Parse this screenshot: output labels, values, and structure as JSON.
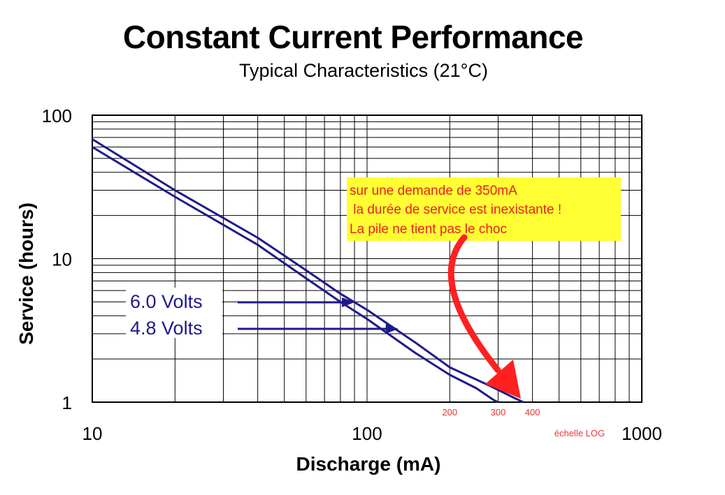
{
  "title": "Constant Current Performance",
  "subtitle": "Typical Characteristics (21°C)",
  "chart_data": {
    "type": "line",
    "x_scale": "log",
    "y_scale": "log",
    "xlabel": "Discharge (mA)",
    "ylabel": "Service (hours)",
    "xlim": [
      10,
      1000
    ],
    "ylim": [
      1,
      100
    ],
    "x_ticks": [
      "10",
      "100",
      "1000"
    ],
    "y_ticks": [
      "100",
      "10",
      "1"
    ],
    "grid": true,
    "series": [
      {
        "name": "6.0 Volts",
        "points": [
          [
            10,
            68
          ],
          [
            20,
            30
          ],
          [
            40,
            14
          ],
          [
            60,
            8.3
          ],
          [
            80,
            5.7
          ],
          [
            100,
            4.4
          ],
          [
            150,
            2.6
          ],
          [
            200,
            1.75
          ],
          [
            280,
            1.3
          ],
          [
            340,
            1.08
          ],
          [
            370,
            1.0
          ]
        ]
      },
      {
        "name": "4.8 Volts",
        "points": [
          [
            10,
            60
          ],
          [
            20,
            27
          ],
          [
            40,
            12.5
          ],
          [
            60,
            7.3
          ],
          [
            80,
            5.0
          ],
          [
            100,
            3.8
          ],
          [
            150,
            2.2
          ],
          [
            200,
            1.55
          ],
          [
            250,
            1.25
          ],
          [
            290,
            1.03
          ],
          [
            300,
            1.0
          ]
        ]
      }
    ],
    "red_ticks": [
      "200",
      "300",
      "400"
    ],
    "scale_note": "échelle LOG"
  },
  "annotation": {
    "lines": [
      "sur une demande de 350mA",
      " la durée de service est inexistante !",
      "La pile ne tient pas le choc"
    ],
    "bg_color": "#ffff33",
    "text_color": "#e62121",
    "arrow_color": "#ff2020"
  },
  "colors": {
    "series_line": "#1f1a8a",
    "grid": "#000000"
  }
}
